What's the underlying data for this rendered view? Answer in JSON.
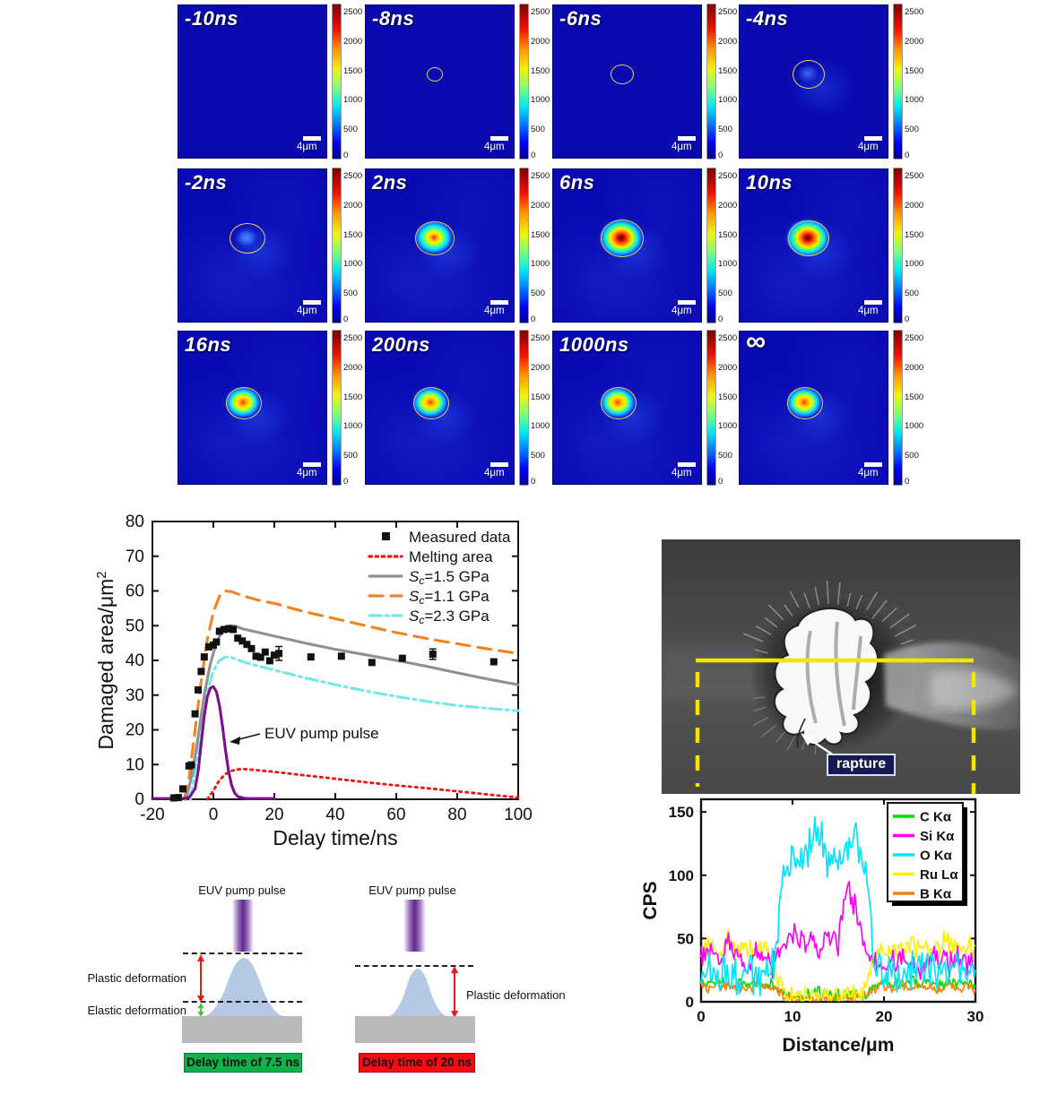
{
  "heatmap": {
    "colorbar_ticks": [
      "0",
      "500",
      "1000",
      "1500",
      "2000",
      "2500"
    ],
    "scale_bar_label": "4μm",
    "panels": [
      {
        "label": "-10ns",
        "circle": false,
        "circle_rx": 0,
        "circle_ry": 0,
        "spot": "none"
      },
      {
        "label": "-8ns",
        "circle": true,
        "circle_rx": 8,
        "circle_ry": 7,
        "spot": "none"
      },
      {
        "label": "-6ns",
        "circle": true,
        "circle_rx": 12,
        "circle_ry": 10,
        "spot": "none"
      },
      {
        "label": "-4ns",
        "circle": true,
        "circle_rx": 17,
        "circle_ry": 15,
        "spot": "faint"
      },
      {
        "label": "-2ns",
        "circle": true,
        "circle_rx": 19,
        "circle_ry": 16,
        "spot": "blue"
      },
      {
        "label": "2ns",
        "circle": true,
        "circle_rx": 21,
        "circle_ry": 18,
        "spot": "warm"
      },
      {
        "label": "6ns",
        "circle": true,
        "circle_rx": 23,
        "circle_ry": 20,
        "spot": "hot"
      },
      {
        "label": "10ns",
        "circle": true,
        "circle_rx": 22,
        "circle_ry": 19,
        "spot": "hot"
      },
      {
        "label": "16ns",
        "circle": true,
        "circle_rx": 19,
        "circle_ry": 17,
        "spot": "late"
      },
      {
        "label": "200ns",
        "circle": true,
        "circle_rx": 19,
        "circle_ry": 17,
        "spot": "late"
      },
      {
        "label": "1000ns",
        "circle": true,
        "circle_rx": 19,
        "circle_ry": 17,
        "spot": "late"
      },
      {
        "label": "∞",
        "circle": true,
        "circle_rx": 19,
        "circle_ry": 17,
        "spot": "late"
      }
    ]
  },
  "chart_data": [
    {
      "type": "line",
      "xlabel": "Delay time/ns",
      "ylabel": "Damaged area/μm²",
      "xlim": [
        -20,
        100
      ],
      "ylim": [
        0,
        80
      ],
      "xticks": [
        -20,
        0,
        20,
        40,
        60,
        80,
        100
      ],
      "yticks": [
        0,
        10,
        20,
        30,
        40,
        50,
        60,
        70,
        80
      ],
      "grid": false,
      "legend_position": "top-right",
      "annotation": "EUV pump pulse",
      "legend": [
        {
          "label": "Measured data",
          "style": "square",
          "color": "#111111"
        },
        {
          "label": "Melting area",
          "style": "dotted",
          "color": "#ee1111"
        },
        {
          "label": "Sc=1.5 GPa",
          "style": "solid",
          "color": "#909090"
        },
        {
          "label": "Sc=1.1 GPa",
          "style": "dashed",
          "color": "#f58220"
        },
        {
          "label": "Sc=2.3 GPa",
          "style": "dashdot",
          "color": "#72e8e8"
        }
      ],
      "measured_points": [
        [
          -13,
          0.4
        ],
        [
          -11.5,
          0.5
        ],
        [
          -10,
          3
        ],
        [
          -8,
          9.6
        ],
        [
          -7.2,
          9.9
        ],
        [
          -6,
          24.6
        ],
        [
          -5,
          31.5
        ],
        [
          -4,
          36.8
        ],
        [
          -3,
          41
        ],
        [
          -1.5,
          43.9
        ],
        [
          0,
          44.4
        ],
        [
          1,
          45.3
        ],
        [
          2,
          48.4
        ],
        [
          3.5,
          48.9
        ],
        [
          5,
          49.1
        ],
        [
          6.5,
          48.9
        ],
        [
          8,
          46.4
        ],
        [
          9.5,
          45.6
        ],
        [
          11,
          44.6
        ],
        [
          12.5,
          43.4
        ],
        [
          14,
          41.2
        ],
        [
          15.5,
          40.9
        ],
        [
          17,
          42.4
        ],
        [
          18.5,
          39.9
        ],
        [
          20,
          41.5
        ],
        [
          21.5,
          42
        ],
        [
          32,
          41
        ],
        [
          42,
          41.2
        ],
        [
          52,
          39.4
        ],
        [
          62,
          40.6
        ],
        [
          72,
          41.8
        ],
        [
          92,
          39.6
        ]
      ],
      "error_bars": [
        [
          21.5,
          42,
          2.0
        ],
        [
          72,
          41.8,
          1.5
        ]
      ],
      "series": [
        {
          "name": "Melting area",
          "color": "#ee1111",
          "style": "dotted",
          "points": [
            [
              -2,
              0
            ],
            [
              0,
              2.5
            ],
            [
              2,
              5.5
            ],
            [
              4,
              7.3
            ],
            [
              6,
              8.2
            ],
            [
              8,
              8.6
            ],
            [
              10,
              8.7
            ],
            [
              14,
              8.4
            ],
            [
              20,
              7.9
            ],
            [
              30,
              6.9
            ],
            [
              40,
              5.9
            ],
            [
              50,
              4.9
            ],
            [
              60,
              4.0
            ],
            [
              70,
              3.2
            ],
            [
              80,
              2.3
            ],
            [
              90,
              1.4
            ],
            [
              100,
              0.5
            ]
          ]
        },
        {
          "name": "Sc=2.3 GPa",
          "color": "#72e8e8",
          "style": "dashdot",
          "points": [
            [
              -7.5,
              0
            ],
            [
              -6,
              8
            ],
            [
              -4,
              20
            ],
            [
              -2,
              31
            ],
            [
              0,
              37
            ],
            [
              2,
              40
            ],
            [
              4,
              41
            ],
            [
              6,
              40.8
            ],
            [
              10,
              39.5
            ],
            [
              15,
              38.3
            ],
            [
              20,
              37.2
            ],
            [
              30,
              35
            ],
            [
              40,
              33
            ],
            [
              50,
              31.2
            ],
            [
              60,
              29.6
            ],
            [
              70,
              28.2
            ],
            [
              80,
              27
            ],
            [
              90,
              26.2
            ],
            [
              100,
              25.5
            ]
          ]
        },
        {
          "name": "Sc=1.1 GPa",
          "color": "#f58220",
          "style": "dashed",
          "points": [
            [
              -9.5,
              0
            ],
            [
              -8,
              6
            ],
            [
              -6,
              20
            ],
            [
              -4,
              34
            ],
            [
              -2,
              46
            ],
            [
              0,
              54
            ],
            [
              2,
              58.5
            ],
            [
              4,
              60
            ],
            [
              6,
              59.8
            ],
            [
              10,
              58.5
            ],
            [
              15,
              57.3
            ],
            [
              20,
              56.4
            ],
            [
              30,
              54
            ],
            [
              40,
              52
            ],
            [
              50,
              50
            ],
            [
              60,
              48
            ],
            [
              70,
              46.3
            ],
            [
              80,
              44.8
            ],
            [
              90,
              43.3
            ],
            [
              100,
              42
            ]
          ]
        },
        {
          "name": "Sc=1.5 GPa",
          "color": "#909090",
          "style": "solid",
          "points": [
            [
              -9,
              0
            ],
            [
              -7,
              7
            ],
            [
              -5,
              18
            ],
            [
              -3,
              30
            ],
            [
              -1,
              39
            ],
            [
              1,
              45
            ],
            [
              3,
              48.8
            ],
            [
              5,
              50
            ],
            [
              7,
              49.9
            ],
            [
              10,
              49
            ],
            [
              15,
              48
            ],
            [
              20,
              47
            ],
            [
              30,
              45
            ],
            [
              40,
              43.2
            ],
            [
              50,
              41.6
            ],
            [
              60,
              40
            ],
            [
              70,
              38.3
            ],
            [
              80,
              36.4
            ],
            [
              90,
              34.6
            ],
            [
              100,
              33
            ]
          ]
        },
        {
          "name": "EUV pump pulse",
          "color": "#7c0e8e",
          "style": "solid",
          "points": [
            [
              -20,
              0.2
            ],
            [
              -10,
              0.2
            ],
            [
              -8,
              0.5
            ],
            [
              -6,
              3
            ],
            [
              -5,
              8
            ],
            [
              -4,
              16
            ],
            [
              -3,
              24
            ],
            [
              -2,
              29.5
            ],
            [
              -1,
              32
            ],
            [
              0,
              32.5
            ],
            [
              1,
              31
            ],
            [
              2,
              27
            ],
            [
              3,
              21
            ],
            [
              4,
              14
            ],
            [
              5,
              8
            ],
            [
              6,
              4
            ],
            [
              7,
              1.8
            ],
            [
              8,
              0.8
            ],
            [
              10,
              0.3
            ],
            [
              12,
              0.2
            ],
            [
              20,
              0.2
            ]
          ]
        }
      ]
    },
    {
      "type": "line",
      "xlabel": "Distance/μm",
      "ylabel": "CPS",
      "xlim": [
        0,
        30
      ],
      "ylim": [
        0,
        160
      ],
      "xticks": [
        0,
        10,
        20,
        30
      ],
      "yticks": [
        0,
        50,
        100,
        150
      ],
      "grid": false,
      "legend_position": "top-right",
      "series": [
        {
          "name": "C Kα",
          "color": "#00dd00",
          "noise": 4,
          "values": [
            15,
            13,
            16,
            14,
            15,
            13,
            16,
            14,
            13,
            7,
            5,
            6,
            5,
            7,
            5,
            6,
            5,
            6,
            6,
            11,
            14,
            15,
            13,
            16,
            14,
            15,
            13,
            14,
            16,
            15,
            14
          ]
        },
        {
          "name": "Si Kα",
          "color": "#ff00ff",
          "noise": 9,
          "values": [
            32,
            40,
            28,
            45,
            33,
            30,
            38,
            35,
            30,
            42,
            50,
            46,
            52,
            45,
            50,
            48,
            95,
            70,
            45,
            32,
            30,
            33,
            36,
            30,
            28,
            33,
            36,
            30,
            33,
            30,
            28
          ]
        },
        {
          "name": "O Kα",
          "color": "#00e5ff",
          "noise": 13,
          "values": [
            22,
            26,
            18,
            24,
            20,
            25,
            20,
            18,
            30,
            100,
            118,
            112,
            126,
            135,
            108,
            112,
            120,
            132,
            98,
            32,
            22,
            26,
            20,
            24,
            28,
            29,
            22,
            26,
            30,
            24,
            20
          ]
        },
        {
          "name": "Ru Lα",
          "color": "#ffee00",
          "noise": 8,
          "values": [
            42,
            48,
            38,
            50,
            40,
            44,
            38,
            46,
            30,
            8,
            5,
            4,
            5,
            4,
            5,
            4,
            5,
            5,
            10,
            36,
            40,
            44,
            38,
            46,
            42,
            38,
            44,
            48,
            40,
            44,
            38
          ]
        },
        {
          "name": "B Kα",
          "color": "#ff8000",
          "noise": 3.5,
          "values": [
            12,
            10,
            13,
            11,
            12,
            9,
            14,
            11,
            12,
            4,
            2,
            3,
            2,
            3,
            2,
            3,
            2,
            3,
            5,
            10,
            12,
            11,
            13,
            10,
            12,
            11,
            10,
            13,
            11,
            12,
            10
          ]
        }
      ]
    }
  ],
  "sem": {
    "rupture_label": "rapture",
    "outline_color": "#f5e400"
  },
  "diagrams": {
    "left": {
      "pulse_label": "EUV pump pulse",
      "plastic_label": "Plastic deformation",
      "elastic_label": "Elastic deformation",
      "caption": "Delay time of 7.5 ns",
      "caption_color": "#12b04b"
    },
    "right": {
      "pulse_label": "EUV pump pulse",
      "plastic_label": "Plastic deformation",
      "caption": "Delay time of 20 ns",
      "caption_color": "#fa0a12"
    }
  }
}
